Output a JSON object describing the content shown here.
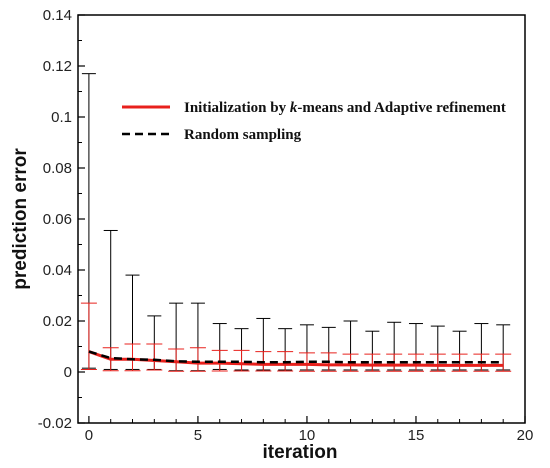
{
  "chart_data": {
    "type": "line",
    "title": "",
    "xlabel": "iteration",
    "ylabel": "prediction error",
    "xlim": [
      -0.5,
      20
    ],
    "ylim": [
      -0.02,
      0.14
    ],
    "xticks": [
      0,
      5,
      10,
      15,
      20
    ],
    "yticks": [
      -0.02,
      0,
      0.02,
      0.04,
      0.06,
      0.08,
      0.1,
      0.12,
      0.14
    ],
    "ytick_labels": [
      "-0.02",
      "0",
      "0.02",
      "0.04",
      "0.06",
      "0.08",
      "0.1",
      "0.12",
      "0.14"
    ],
    "xtick_labels": [
      "0",
      "5",
      "10",
      "15",
      "20"
    ],
    "grid": false,
    "legend_position": "upper-right",
    "x": [
      0,
      1,
      2,
      3,
      4,
      5,
      6,
      7,
      8,
      9,
      10,
      11,
      12,
      13,
      14,
      15,
      16,
      17,
      18,
      19
    ],
    "series": [
      {
        "name": "Initialization by k-means and Adaptive refinement",
        "legend_parts": [
          "Initialization by ",
          "k",
          "-means and Adaptive refinement"
        ],
        "color": "#e8201c",
        "style": "solid",
        "values": [
          0.008,
          0.005,
          0.005,
          0.0045,
          0.004,
          0.0035,
          0.0035,
          0.0032,
          0.003,
          0.003,
          0.003,
          0.0028,
          0.0028,
          0.0027,
          0.0027,
          0.0027,
          0.0026,
          0.0026,
          0.0026,
          0.0026
        ],
        "err_upper": [
          0.027,
          0.0095,
          0.011,
          0.011,
          0.009,
          0.0095,
          0.0085,
          0.0085,
          0.008,
          0.008,
          0.0075,
          0.0075,
          0.007,
          0.007,
          0.007,
          0.007,
          0.007,
          0.007,
          0.007,
          0.007
        ],
        "err_lower": [
          0.001,
          0.0005,
          0.0005,
          0.0008,
          0.0003,
          0.0003,
          0.0004,
          0.0004,
          0.0004,
          0.0004,
          0.0003,
          0.0003,
          0.0003,
          0.0003,
          0.0003,
          0.0003,
          0.0003,
          0.0003,
          0.0003,
          0.0003
        ]
      },
      {
        "name": "Random sampling",
        "color": "#000000",
        "style": "dashed",
        "values": [
          0.008,
          0.0055,
          0.005,
          0.0048,
          0.0042,
          0.004,
          0.004,
          0.004,
          0.0038,
          0.0038,
          0.004,
          0.004,
          0.0038,
          0.0038,
          0.0038,
          0.0038,
          0.0038,
          0.0038,
          0.0038,
          0.0038
        ],
        "err_upper": [
          0.117,
          0.0555,
          0.038,
          0.022,
          0.027,
          0.027,
          0.019,
          0.017,
          0.021,
          0.017,
          0.0185,
          0.0175,
          0.02,
          0.016,
          0.0195,
          0.019,
          0.018,
          0.016,
          0.019,
          0.0185
        ],
        "err_lower": [
          0.0015,
          0.001,
          0.001,
          0.001,
          0.0005,
          0.0005,
          0.001,
          0.0008,
          0.0008,
          0.0008,
          0.0008,
          0.0008,
          0.0008,
          0.0008,
          0.0008,
          0.0008,
          0.0008,
          0.0008,
          0.0008,
          0.0008
        ]
      }
    ]
  }
}
